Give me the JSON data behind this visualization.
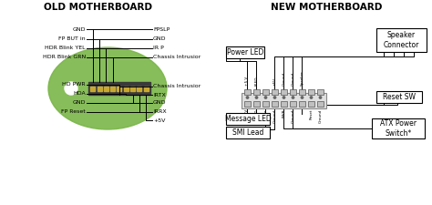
{
  "bg_color": "#ffffff",
  "left_title": "OLD MOTHERBOARD",
  "right_title": "NEW MOTHERBOARD",
  "left_labels_left": [
    "GND",
    "FP BUT in",
    "HDR Blink YEL",
    "HDR Blink GRN",
    "HD PWR",
    "HDA",
    "GND",
    "FP Reset"
  ],
  "left_labels_right": [
    "FPSLP",
    "GND",
    "IR P",
    "Chassis Intrusior",
    "Chassis Intrusior",
    "IRTX",
    "GND",
    "IRRX",
    "+5V"
  ],
  "connector_color": "#3a3a3a",
  "pin_color": "#c8a832",
  "green_blob_color": "#7ab648",
  "new_mb_top_labels": [
    "+5 V",
    "PLED",
    "",
    "+5V",
    "Ground",
    "Ground",
    "Speaker"
  ],
  "new_mb_bot_labels": [
    "+5 V",
    "MLED",
    "ExtSMIe",
    "Ground",
    "PWR",
    "Ground",
    "",
    "Reset",
    "Ground"
  ],
  "box_power_led": "Power LED",
  "box_speaker": "Speaker\nConnector",
  "box_message": "Message LED",
  "box_smi": "SMI Lead",
  "box_reset": "Reset SW",
  "box_atx": "ATX Power\nSwitch*"
}
